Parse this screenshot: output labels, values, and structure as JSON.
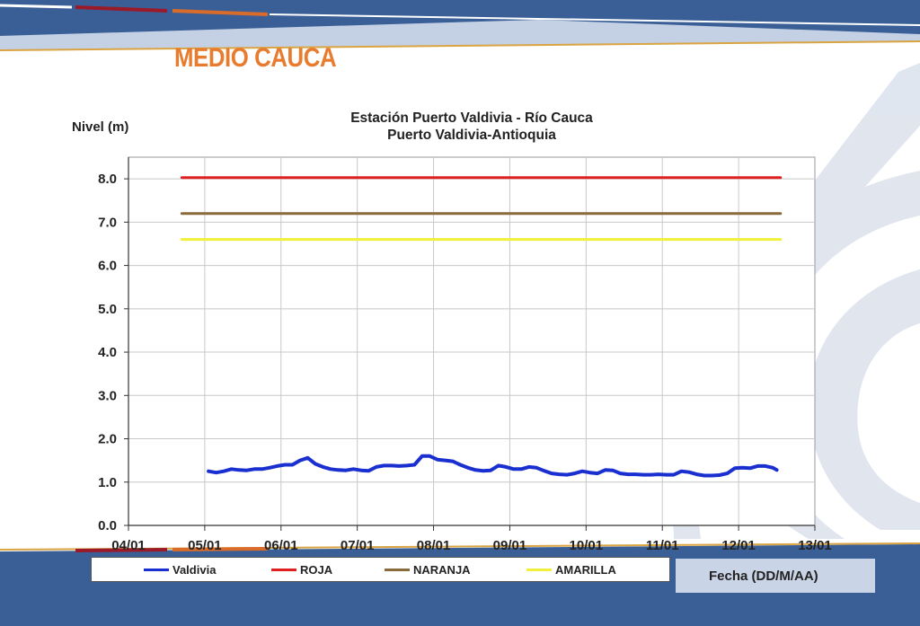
{
  "header": {
    "title": "MEDIO CAUCA"
  },
  "colors": {
    "accent": "#e87b2e",
    "banner": "#3a5f96",
    "gold": "#d9a441"
  },
  "chart_data": {
    "type": "line",
    "title": "Estación Puerto Valdivia - Río Cauca",
    "subtitle": "Puerto Valdivia-Antioquia",
    "ylabel": "Nivel (m)",
    "xlabel": "Fecha (DD/M/AA)",
    "ylim": [
      0,
      8.5
    ],
    "xlim": [
      0,
      9
    ],
    "y_ticks": [
      "0.0",
      "1.0",
      "2.0",
      "3.0",
      "4.0",
      "5.0",
      "6.0",
      "7.0",
      "8.0"
    ],
    "x_ticks": [
      "04/01",
      "05/01",
      "06/01",
      "07/01",
      "08/01",
      "09/01",
      "10/01",
      "11/01",
      "12/01",
      "13/01"
    ],
    "grid": true,
    "legend_position": "bottom",
    "series": [
      {
        "name": "Valdivia",
        "color": "#1a2fd0",
        "x": [
          1.05,
          1.15,
          1.25,
          1.35,
          1.45,
          1.55,
          1.65,
          1.75,
          1.85,
          1.95,
          2.05,
          2.15,
          2.25,
          2.35,
          2.45,
          2.55,
          2.65,
          2.75,
          2.85,
          2.95,
          3.05,
          3.15,
          3.25,
          3.35,
          3.45,
          3.55,
          3.65,
          3.75,
          3.85,
          3.95,
          4.05,
          4.15,
          4.25,
          4.35,
          4.45,
          4.55,
          4.65,
          4.75,
          4.85,
          4.95,
          5.05,
          5.15,
          5.25,
          5.35,
          5.45,
          5.55,
          5.65,
          5.75,
          5.85,
          5.95,
          6.05,
          6.15,
          6.25,
          6.35,
          6.45,
          6.55,
          6.65,
          6.75,
          6.85,
          6.95,
          7.05,
          7.15,
          7.25,
          7.35,
          7.45,
          7.55,
          7.65,
          7.75,
          7.85,
          7.95,
          8.05,
          8.15,
          8.25,
          8.35,
          8.45,
          8.5
        ],
        "y": [
          1.25,
          1.22,
          1.25,
          1.3,
          1.28,
          1.27,
          1.3,
          1.3,
          1.33,
          1.37,
          1.4,
          1.4,
          1.5,
          1.56,
          1.42,
          1.35,
          1.3,
          1.28,
          1.27,
          1.3,
          1.27,
          1.26,
          1.35,
          1.38,
          1.38,
          1.37,
          1.38,
          1.4,
          1.6,
          1.6,
          1.52,
          1.5,
          1.48,
          1.4,
          1.33,
          1.28,
          1.26,
          1.27,
          1.38,
          1.35,
          1.3,
          1.3,
          1.35,
          1.33,
          1.26,
          1.2,
          1.18,
          1.17,
          1.2,
          1.25,
          1.22,
          1.2,
          1.28,
          1.27,
          1.2,
          1.18,
          1.18,
          1.17,
          1.17,
          1.18,
          1.17,
          1.17,
          1.25,
          1.23,
          1.18,
          1.15,
          1.15,
          1.16,
          1.2,
          1.32,
          1.33,
          1.32,
          1.37,
          1.37,
          1.33,
          1.28
        ]
      },
      {
        "name": "ROJA",
        "color": "#e02020",
        "x": [
          0.7,
          8.55
        ],
        "y": [
          8.03,
          8.03
        ]
      },
      {
        "name": "NARANJA",
        "color": "#8a6a3a",
        "x": [
          0.7,
          8.55
        ],
        "y": [
          7.2,
          7.2
        ]
      },
      {
        "name": "AMARILLA",
        "color": "#f0f03a",
        "x": [
          0.7,
          8.55
        ],
        "y": [
          6.6,
          6.6
        ]
      }
    ]
  }
}
